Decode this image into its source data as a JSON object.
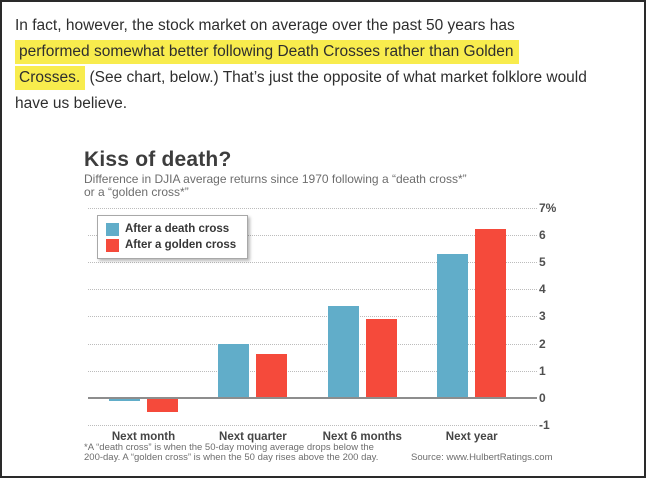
{
  "paragraph": {
    "line1": "In fact, however, the stock market on average over the past 50 years has",
    "line2_highlighted": "performed somewhat better following Death Crosses rather than Golden",
    "line3_highlighted": "Crosses.",
    "line3_rest": " (See chart, below.) That’s just the opposite of what market folklore would",
    "line4": "have us believe.",
    "highlight_color": "#f8ec4d"
  },
  "chart_data": {
    "type": "bar",
    "title": "Kiss of death?",
    "subtitle_lines": [
      "Difference in DJIA average returns since 1970 following a “death cross*”",
      "or a “golden cross*”"
    ],
    "categories": [
      "Next month",
      "Next quarter",
      "Next 6 months",
      "Next year"
    ],
    "series": [
      {
        "name": "After a death cross",
        "color": "#61adc9",
        "values": [
          -0.1,
          2.0,
          3.4,
          5.3
        ]
      },
      {
        "name": "After a golden cross",
        "color": "#f54a3b",
        "values": [
          -0.5,
          1.6,
          2.9,
          6.2
        ]
      }
    ],
    "xlabel": "",
    "ylabel": "",
    "ylim": [
      -1,
      7
    ],
    "ytick_values": [
      7,
      6,
      5,
      4,
      3,
      2,
      1,
      0,
      -1
    ],
    "ytick_labels": [
      "7%",
      "6",
      "5",
      "4",
      "3",
      "2",
      "1",
      "0",
      "-1"
    ],
    "grid": "horizontal-dotted",
    "legend_position": "top-left",
    "footnote_lines": [
      "*A “death cross” is when the 50-day moving average drops below the",
      "200-day. A “golden cross” is when the 50 day rises above the 200 day."
    ],
    "source": "Source: www.HulbertRatings.com"
  }
}
